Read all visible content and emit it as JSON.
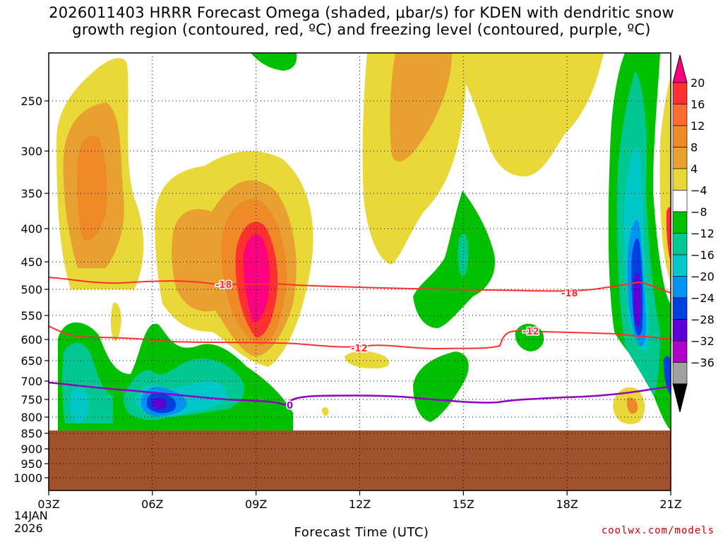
{
  "chart_data": {
    "type": "heatmap",
    "title_line1": "2026011403 HRRR Forecast Omega (shaded, μbar/s) for KDEN with dendritic snow",
    "title_line2": "growth region (contoured, red, ºC) and freezing level (contoured, purple, ºC)",
    "xlabel": "Forecast Time (UTC)",
    "y_axis": {
      "ticks": [
        "250",
        "300",
        "350",
        "400",
        "450",
        "500",
        "550",
        "600",
        "650",
        "700",
        "750",
        "800",
        "850",
        "900",
        "950",
        "1000"
      ],
      "values": [
        250,
        300,
        350,
        400,
        450,
        500,
        550,
        600,
        650,
        700,
        750,
        800,
        850,
        900,
        950,
        1000
      ],
      "ylim": [
        200,
        1050
      ]
    },
    "x_axis": {
      "ticks": [
        "03Z",
        "06Z",
        "09Z",
        "12Z",
        "15Z",
        "18Z",
        "21Z"
      ],
      "hours": [
        3,
        6,
        9,
        12,
        15,
        18,
        21
      ],
      "date_line1": "14JAN",
      "date_line2": "2026",
      "xlim": [
        3,
        21
      ]
    },
    "grid": "dotted",
    "colorbar": {
      "labels": [
        "20",
        "16",
        "12",
        "8",
        "4",
        "−4",
        "−8",
        "−12",
        "−16",
        "−20",
        "−24",
        "−28",
        "−32",
        "−36"
      ],
      "colors": [
        "#ff0080",
        "#ff3030",
        "#ff6e30",
        "#ee8a28",
        "#e8a030",
        "#e8d838",
        "#ffffff",
        "#00c000",
        "#00c890",
        "#00c8c8",
        "#0094f0",
        "#0040e0",
        "#6000d8",
        "#b000c8",
        "#a0a0a0"
      ],
      "placement": "right"
    },
    "contours": {
      "dendritic_labels": [
        "-18",
        "-12",
        "-18",
        "-12"
      ],
      "dendritic_color": "#ff3030",
      "freezing_level_label": "0",
      "freezing_level_color": "#9000c0"
    },
    "terrain_color": "#a0522d"
  },
  "credit": "coolwx.com/models"
}
